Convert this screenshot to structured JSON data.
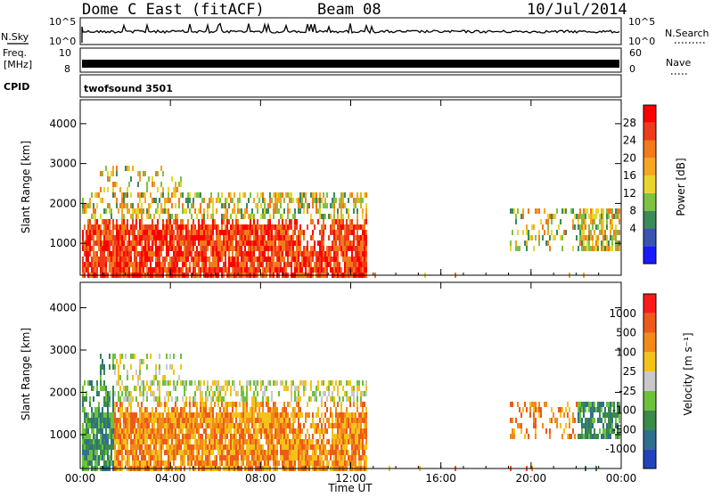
{
  "header": {
    "title": "Dome C East (fitACF)",
    "beam": "Beam 08",
    "date": "10/Jul/2014"
  },
  "top_panels": {
    "nsky_label": "N.Sky",
    "nsky_ticks": [
      "10^5",
      "10^0"
    ],
    "nsearch_label": "N.Search",
    "nsearch_ticks": [
      "10^5",
      "10^0"
    ],
    "freq_label": "Freq.",
    "freq_unit": "[MHz]",
    "freq_ticks": [
      "10",
      "8"
    ],
    "nave_label": "Nave",
    "nave_ticks": [
      "60",
      "0"
    ],
    "cpid_label": "CPID",
    "cpid_value": "twofsound 3501"
  },
  "chart_data": [
    {
      "type": "heatmap",
      "name": "power",
      "ylabel": "Slant Range [km]",
      "xlabel": "",
      "ylim": [
        200,
        4600
      ],
      "xlim": [
        0,
        24
      ],
      "yticks": [
        "4000",
        "3000",
        "2000",
        "1000"
      ],
      "colorbar_label": "Power [dB]",
      "colorbar_ticks": [
        "28",
        "24",
        "20",
        "16",
        "12",
        "8",
        "4"
      ],
      "colors": [
        "#1a1aff",
        "#3a55b0",
        "#3b8a5a",
        "#7fc241",
        "#e8d62a",
        "#f5a623",
        "#f27a1a",
        "#ee3b1c",
        "#ff0000"
      ]
    },
    {
      "type": "heatmap",
      "name": "velocity",
      "ylabel": "Slant Range [km]",
      "xlabel": "Time UT",
      "ylim": [
        200,
        4600
      ],
      "xlim": [
        0,
        24
      ],
      "yticks": [
        "4000",
        "3000",
        "2000",
        "1000"
      ],
      "xticks": [
        "00:00",
        "04:00",
        "08:00",
        "12:00",
        "16:00",
        "20:00",
        "00:00"
      ],
      "colorbar_label": "Velocity [m s⁻¹]",
      "colorbar_ticks": [
        "1000",
        "500",
        "100",
        "25",
        "-25",
        "-100",
        "-500",
        "-1000"
      ],
      "colors": [
        "#2244bb",
        "#2f6f8f",
        "#3a8a4a",
        "#6dc13b",
        "#c8c8c8",
        "#f5c21a",
        "#f28a1a",
        "#ee5a1a",
        "#ff1a1a"
      ]
    }
  ]
}
